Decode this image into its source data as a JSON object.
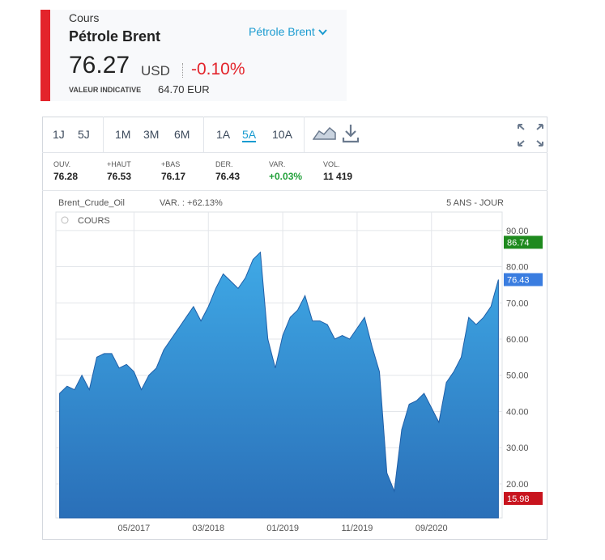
{
  "header": {
    "label": "Cours",
    "instrument": "Pétrole Brent",
    "selector": "Pétrole Brent",
    "price": 76.27,
    "currency": "USD",
    "change": "-0.10%",
    "indicative_label": "VALEUR INDICATIVE",
    "indicative_value": "64.70 EUR"
  },
  "toolbar": {
    "periods": [
      "1J",
      "5J",
      "1M",
      "3M",
      "6M",
      "1A",
      "5A",
      "10A"
    ],
    "active": "5A"
  },
  "stats": [
    {
      "label": "OUV.",
      "value": 76.28
    },
    {
      "label": "+HAUT",
      "value": 76.53
    },
    {
      "label": "+BAS",
      "value": 76.17
    },
    {
      "label": "DER.",
      "value": 76.43
    },
    {
      "label": "VAR.",
      "value": "+0.03%"
    },
    {
      "label": "VOL.",
      "value": "11 419"
    }
  ],
  "chart_data": {
    "type": "area",
    "title": "Brent_Crude_Oil",
    "subtitle": "VAR. : +62.13%",
    "period_label": "5 ANS - JOUR",
    "x": [
      "07/2016",
      "08/2016",
      "09/2016",
      "10/2016",
      "11/2016",
      "12/2016",
      "01/2017",
      "02/2017",
      "03/2017",
      "04/2017",
      "05/2017",
      "06/2017",
      "07/2017",
      "08/2017",
      "09/2017",
      "10/2017",
      "11/2017",
      "12/2017",
      "01/2018",
      "02/2018",
      "03/2018",
      "04/2018",
      "05/2018",
      "06/2018",
      "07/2018",
      "08/2018",
      "09/2018",
      "10/2018",
      "11/2018",
      "12/2018",
      "01/2019",
      "02/2019",
      "03/2019",
      "04/2019",
      "05/2019",
      "06/2019",
      "07/2019",
      "08/2019",
      "09/2019",
      "10/2019",
      "11/2019",
      "12/2019",
      "01/2020",
      "02/2020",
      "03/2020",
      "04/2020",
      "05/2020",
      "06/2020",
      "07/2020",
      "08/2020",
      "09/2020",
      "10/2020",
      "11/2020",
      "12/2020",
      "01/2021",
      "02/2021",
      "03/2021",
      "04/2021",
      "05/2021",
      "06/2021"
    ],
    "series": [
      {
        "name": "COURS",
        "color": "#2a6fb8",
        "values": [
          45,
          47,
          46,
          50,
          46,
          55,
          56,
          56,
          52,
          53,
          51,
          46,
          50,
          52,
          57,
          60,
          63,
          66,
          69,
          65,
          69,
          74,
          78,
          76,
          74,
          77,
          82,
          84,
          60,
          52,
          61,
          66,
          68,
          72,
          65,
          65,
          64,
          60,
          61,
          60,
          63,
          66,
          58,
          51,
          23,
          18,
          35,
          42,
          43,
          45,
          41,
          37,
          48,
          51,
          55,
          66,
          64,
          66,
          69,
          76.43
        ]
      }
    ],
    "ylim": [
      10.6,
      95.1
    ],
    "yticks": [
      {
        "value": 20,
        "label": "20.00"
      },
      {
        "value": 30,
        "label": "30.00"
      },
      {
        "value": 40,
        "label": "40.00"
      },
      {
        "value": 50,
        "label": "50.00"
      },
      {
        "value": 60,
        "label": "60.00"
      },
      {
        "value": 70,
        "label": "70.00"
      },
      {
        "value": 80,
        "label": "80.00"
      },
      {
        "value": 90,
        "label": "90.00"
      }
    ],
    "xticks": [
      "05/2017",
      "03/2018",
      "01/2019",
      "11/2019",
      "09/2020"
    ],
    "grid": true,
    "badges": [
      {
        "value": 86.74,
        "color": "#1e8a1e"
      },
      {
        "value": 76.43,
        "color": "#3a7de0"
      },
      {
        "value": 15.98,
        "color": "#c8141e"
      }
    ]
  }
}
